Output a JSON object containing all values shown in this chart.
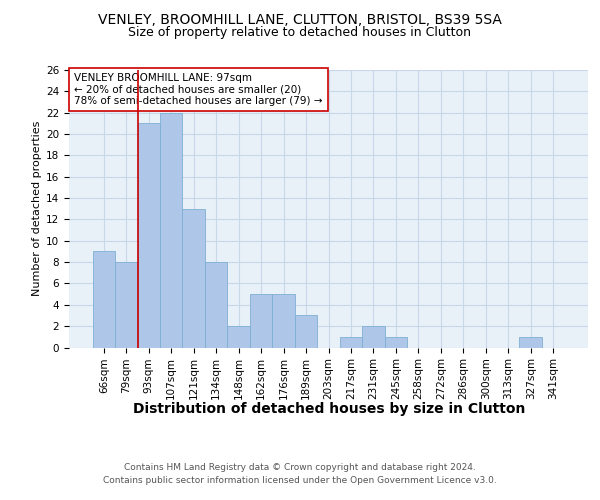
{
  "title1": "VENLEY, BROOMHILL LANE, CLUTTON, BRISTOL, BS39 5SA",
  "title2": "Size of property relative to detached houses in Clutton",
  "xlabel": "Distribution of detached houses by size in Clutton",
  "ylabel": "Number of detached properties",
  "categories": [
    "66sqm",
    "79sqm",
    "93sqm",
    "107sqm",
    "121sqm",
    "134sqm",
    "148sqm",
    "162sqm",
    "176sqm",
    "189sqm",
    "203sqm",
    "217sqm",
    "231sqm",
    "245sqm",
    "258sqm",
    "272sqm",
    "286sqm",
    "300sqm",
    "313sqm",
    "327sqm",
    "341sqm"
  ],
  "values": [
    9,
    8,
    21,
    22,
    13,
    8,
    2,
    5,
    5,
    3,
    0,
    1,
    2,
    1,
    0,
    0,
    0,
    0,
    0,
    1,
    0
  ],
  "bar_color": "#aec6e8",
  "bar_edge_color": "#7fafd4",
  "grid_color": "#c8d8e8",
  "bg_color": "#e8f0f8",
  "vline_x_index": 2,
  "vline_color": "#cc0000",
  "annotation_text": "VENLEY BROOMHILL LANE: 97sqm\n← 20% of detached houses are smaller (20)\n78% of semi-detached houses are larger (79) →",
  "annotation_box_color": "#ffffff",
  "annotation_box_edge": "#cc0000",
  "ylim": [
    0,
    26
  ],
  "yticks": [
    0,
    2,
    4,
    6,
    8,
    10,
    12,
    14,
    16,
    18,
    20,
    22,
    24,
    26
  ],
  "footer1": "Contains HM Land Registry data © Crown copyright and database right 2024.",
  "footer2": "Contains public sector information licensed under the Open Government Licence v3.0.",
  "title1_fontsize": 10,
  "title2_fontsize": 9,
  "xlabel_fontsize": 10,
  "ylabel_fontsize": 8,
  "tick_fontsize": 7.5,
  "annotation_fontsize": 7.5,
  "footer_fontsize": 6.5
}
